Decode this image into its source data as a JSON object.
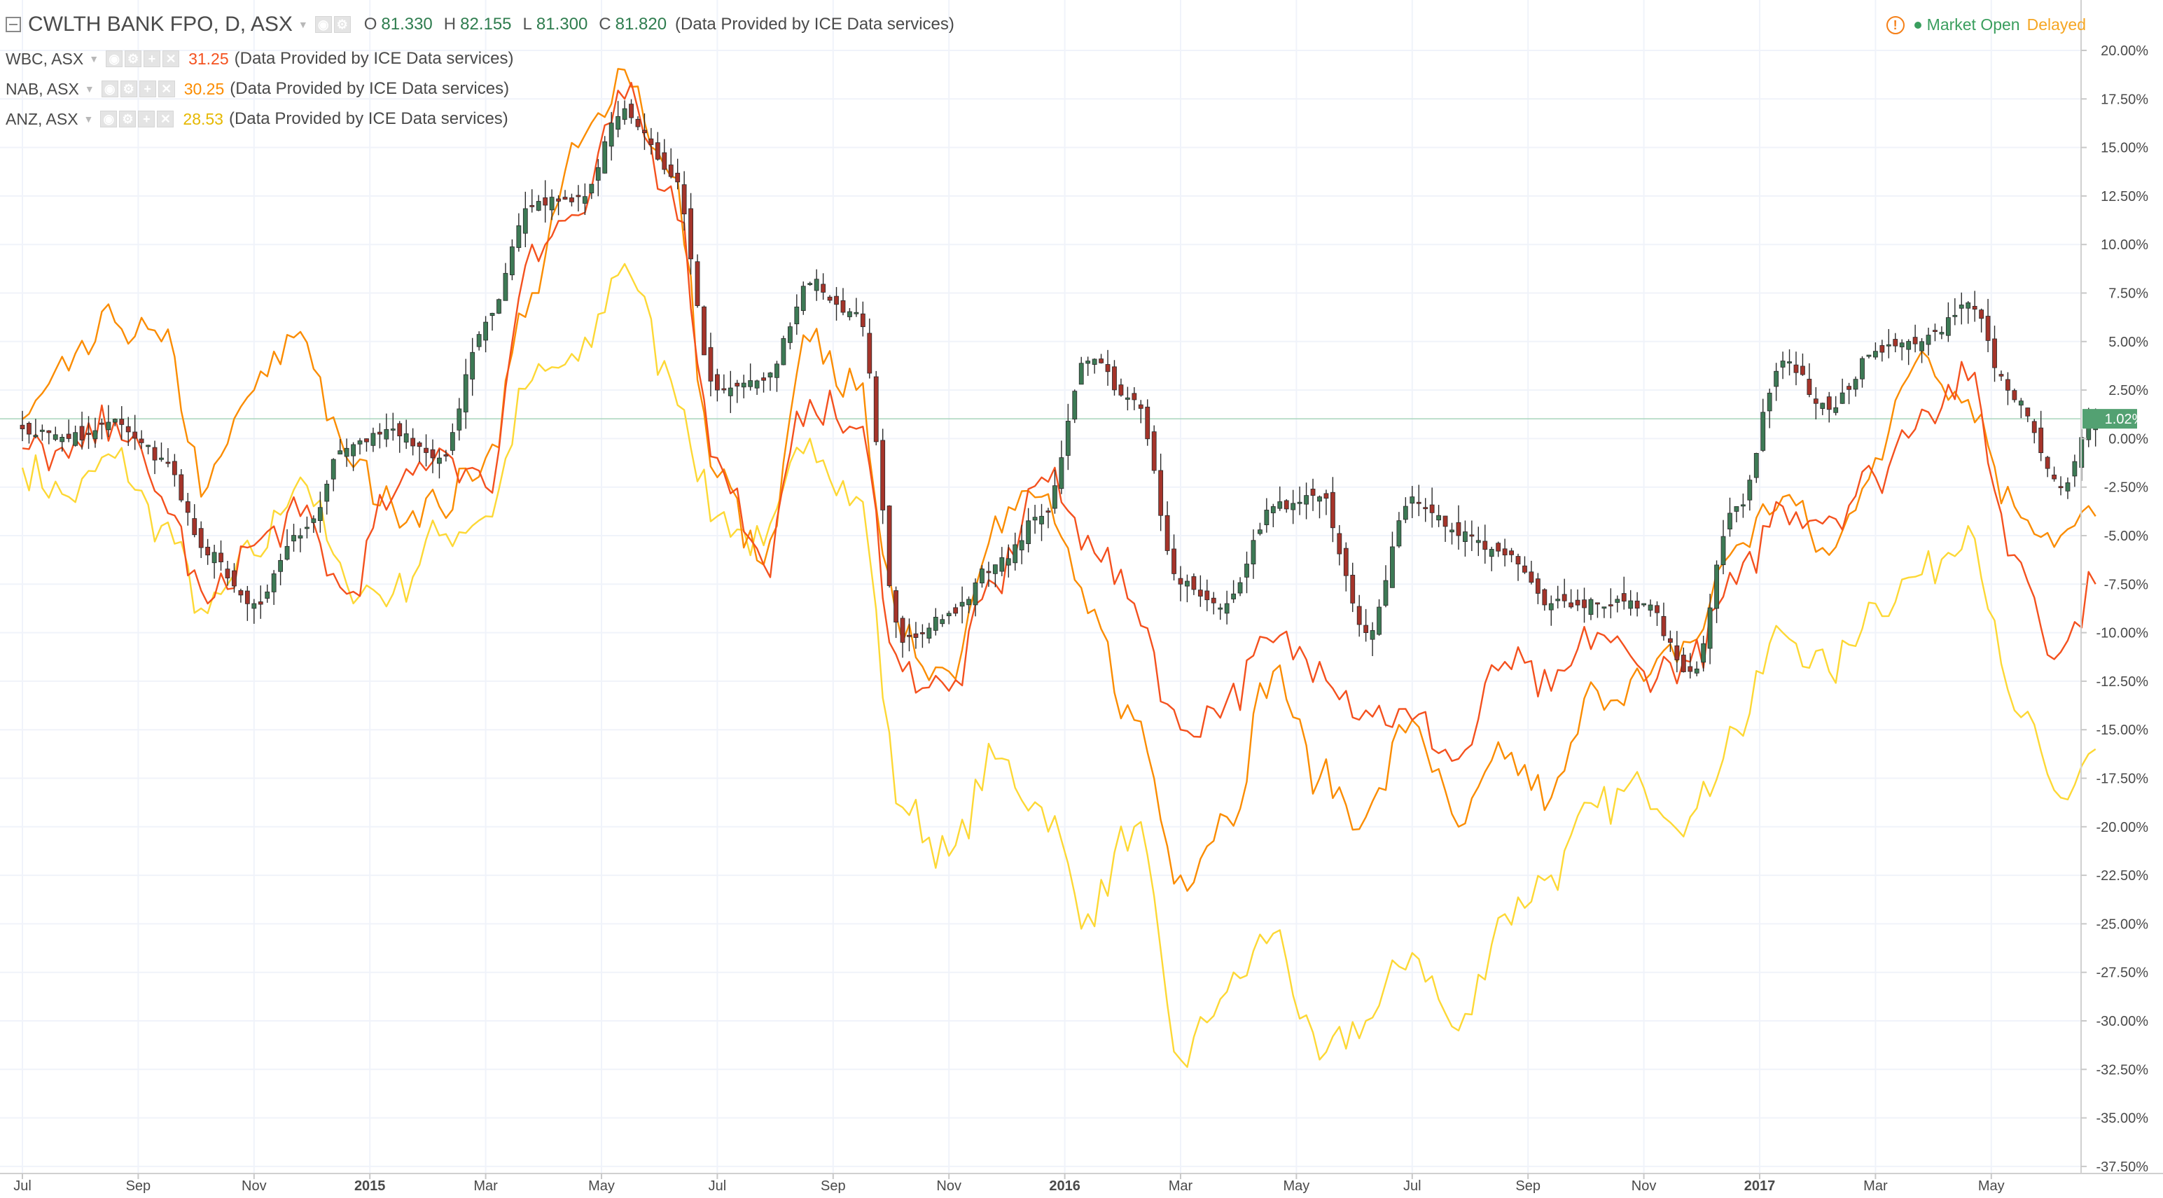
{
  "header": {
    "symbol": "CWLTH BANK FPO, D, ASX",
    "ohlc": [
      {
        "label": "O",
        "value": "81.330"
      },
      {
        "label": "H",
        "value": "82.155"
      },
      {
        "label": "L",
        "value": "81.300"
      },
      {
        "label": "C",
        "value": "81.820"
      }
    ],
    "provider": "(Data Provided by ICE Data services)"
  },
  "comparisons": [
    {
      "symbol": "WBC, ASX",
      "value": "31.25",
      "color": "#f4511e",
      "provider": "(Data Provided by ICE Data services)"
    },
    {
      "symbol": "NAB, ASX",
      "value": "30.25",
      "color": "#fb8c00",
      "provider": "(Data Provided by ICE Data services)"
    },
    {
      "symbol": "ANZ, ASX",
      "value": "28.53",
      "color": "#fdd835",
      "provider": "(Data Provided by ICE Data services)"
    }
  ],
  "status": {
    "market": "Market Open",
    "delay": "Delayed"
  },
  "colors": {
    "up": "#3d7a55",
    "down": "#a5342a",
    "current_badge": "#53a172"
  },
  "chart_data": {
    "type": "line",
    "ylim": [
      -37.5,
      22.5
    ],
    "y_ticks": [
      "20.00%",
      "17.50%",
      "15.00%",
      "12.50%",
      "10.00%",
      "7.50%",
      "5.00%",
      "2.50%",
      "0.00%",
      "-2.50%",
      "-5.00%",
      "-7.50%",
      "-10.00%",
      "-12.50%",
      "-15.00%",
      "-17.50%",
      "-20.00%",
      "-22.50%",
      "-25.00%",
      "-27.50%",
      "-30.00%",
      "-32.50%",
      "-35.00%",
      "-37.50%"
    ],
    "x_ticks": [
      "Jul",
      "Sep",
      "Nov",
      "2015",
      "Mar",
      "May",
      "Jul",
      "Sep",
      "Nov",
      "2016",
      "Mar",
      "May",
      "Jul",
      "Sep",
      "Nov",
      "2017",
      "Mar",
      "May"
    ],
    "x_tick_month_index": [
      0,
      2,
      4,
      6,
      8,
      10,
      12,
      14,
      16,
      18,
      20,
      22,
      24,
      26,
      28,
      30,
      32,
      34
    ],
    "month_end_index": 35.8,
    "current_value_label": "1.02%",
    "current_value": 1.02,
    "series": [
      {
        "name": "CWLTH BANK FPO, D, ASX",
        "style": "candlestick",
        "color": "#3d7a55",
        "x_month_index": [
          0,
          0.8,
          1.6,
          2.4,
          3.2,
          4,
          4.8,
          5.6,
          6.4,
          7.2,
          8.0,
          8.8,
          9.6,
          10.4,
          11.2,
          12.0,
          12.8,
          13.6,
          14.4,
          15.2,
          16.0,
          16.8,
          17.6,
          18.4,
          19.2,
          20.0,
          20.8,
          21.6,
          22.4,
          23.2,
          24.0,
          24.8,
          25.6,
          26.4,
          27.2,
          28.0,
          28.8,
          29.6,
          30.4,
          31.2,
          32.0,
          32.8,
          33.6,
          34.4,
          35.2,
          35.8
        ],
        "y": [
          0.5,
          0.0,
          1.0,
          -1.0,
          -6.0,
          -8.5,
          -5.0,
          -0.5,
          0.5,
          -1.0,
          6.0,
          12.0,
          12.5,
          17.0,
          13.5,
          2.5,
          3.0,
          8.0,
          6.5,
          -10.5,
          -9.0,
          -6.5,
          -4.0,
          4.0,
          2.0,
          -7.5,
          -8.5,
          -3.5,
          -3.0,
          -10.0,
          -3.0,
          -5.0,
          -6.0,
          -8.5,
          -8.5,
          -8.5,
          -12.0,
          -3.5,
          4.0,
          1.5,
          4.5,
          5.0,
          7.0,
          2.0,
          -2.5,
          1.0
        ]
      },
      {
        "name": "WBC, ASX",
        "color": "#f4511e",
        "x_month_index": [
          0,
          0.8,
          1.6,
          2.4,
          3.2,
          4,
          4.8,
          5.6,
          6.4,
          7.2,
          8.0,
          8.8,
          9.6,
          10.4,
          11.2,
          12.0,
          12.8,
          13.6,
          14.4,
          15.2,
          16.0,
          16.8,
          17.6,
          18.4,
          19.2,
          20.0,
          20.8,
          21.6,
          22.4,
          23.2,
          24.0,
          24.8,
          25.6,
          26.4,
          27.2,
          28.0,
          28.8,
          29.6,
          30.4,
          31.2,
          32.0,
          32.8,
          33.6,
          34.4,
          35.2,
          35.8
        ],
        "y": [
          -0.5,
          -1.0,
          1.0,
          -3.0,
          -8.5,
          -5.5,
          -4.0,
          -8.0,
          -3.0,
          -0.5,
          -2.5,
          10.0,
          11.5,
          17.5,
          13.0,
          -1.0,
          -6.5,
          2.0,
          0.5,
          -12.0,
          -13.0,
          -7.5,
          -2.0,
          -5.0,
          -8.5,
          -15.0,
          -13.5,
          -10.5,
          -11.5,
          -14.0,
          -14.5,
          -16.5,
          -11.5,
          -13.0,
          -10.0,
          -12.0,
          -11.5,
          -7.5,
          -3.5,
          -4.0,
          -2.0,
          1.5,
          3.0,
          -6.0,
          -11.0,
          -7.5
        ]
      },
      {
        "name": "NAB, ASX",
        "color": "#fb8c00",
        "x_month_index": [
          0,
          0.8,
          1.6,
          2.4,
          3.2,
          4,
          4.8,
          5.6,
          6.4,
          7.2,
          8.0,
          8.8,
          9.6,
          10.4,
          11.2,
          12.0,
          12.8,
          13.6,
          14.4,
          15.2,
          16.0,
          16.8,
          17.6,
          18.4,
          19.2,
          20.0,
          20.8,
          21.6,
          22.4,
          23.2,
          24.0,
          24.8,
          25.6,
          26.4,
          27.2,
          28.0,
          28.8,
          29.6,
          30.4,
          31.2,
          32.0,
          32.8,
          33.6,
          34.4,
          35.2,
          35.8
        ],
        "y": [
          1.0,
          3.5,
          6.0,
          5.0,
          -2.5,
          2.5,
          5.5,
          -1.0,
          -3.5,
          -3.5,
          -1.0,
          7.5,
          15.0,
          19.0,
          13.5,
          -2.0,
          -6.5,
          5.0,
          2.5,
          -10.5,
          -12.0,
          -4.0,
          -3.0,
          -9.0,
          -14.5,
          -22.5,
          -19.5,
          -12.0,
          -17.5,
          -19.5,
          -14.5,
          -20.0,
          -16.5,
          -18.5,
          -13.0,
          -12.5,
          -10.5,
          -5.5,
          -3.0,
          -6.0,
          -1.0,
          4.5,
          2.0,
          -3.5,
          -5.0,
          -4.0
        ]
      },
      {
        "name": "ANZ, ASX",
        "color": "#fdd835",
        "x_month_index": [
          0,
          0.8,
          1.6,
          2.4,
          3.2,
          4,
          4.8,
          5.6,
          6.4,
          7.2,
          8.0,
          8.8,
          9.6,
          10.4,
          11.2,
          12.0,
          12.8,
          13.6,
          14.4,
          15.2,
          16.0,
          16.8,
          17.6,
          18.4,
          19.2,
          20.0,
          20.8,
          21.6,
          22.4,
          23.2,
          24.0,
          24.8,
          25.6,
          26.4,
          27.2,
          28.0,
          28.8,
          29.6,
          30.4,
          31.2,
          32.0,
          32.8,
          33.6,
          34.4,
          35.2,
          35.8
        ],
        "y": [
          -1.5,
          -3.0,
          -1.0,
          -4.5,
          -9.0,
          -6.0,
          -2.0,
          -7.5,
          -8.0,
          -5.0,
          -4.0,
          3.0,
          4.0,
          9.0,
          3.0,
          -4.0,
          -5.5,
          0.0,
          -3.0,
          -19.0,
          -21.5,
          -16.5,
          -19.0,
          -24.5,
          -20.0,
          -32.0,
          -28.5,
          -25.5,
          -32.0,
          -30.0,
          -26.5,
          -30.5,
          -24.5,
          -22.5,
          -19.0,
          -18.0,
          -19.5,
          -15.0,
          -10.0,
          -12.0,
          -8.5,
          -7.0,
          -4.5,
          -14.0,
          -18.5,
          -16.0
        ]
      }
    ]
  }
}
